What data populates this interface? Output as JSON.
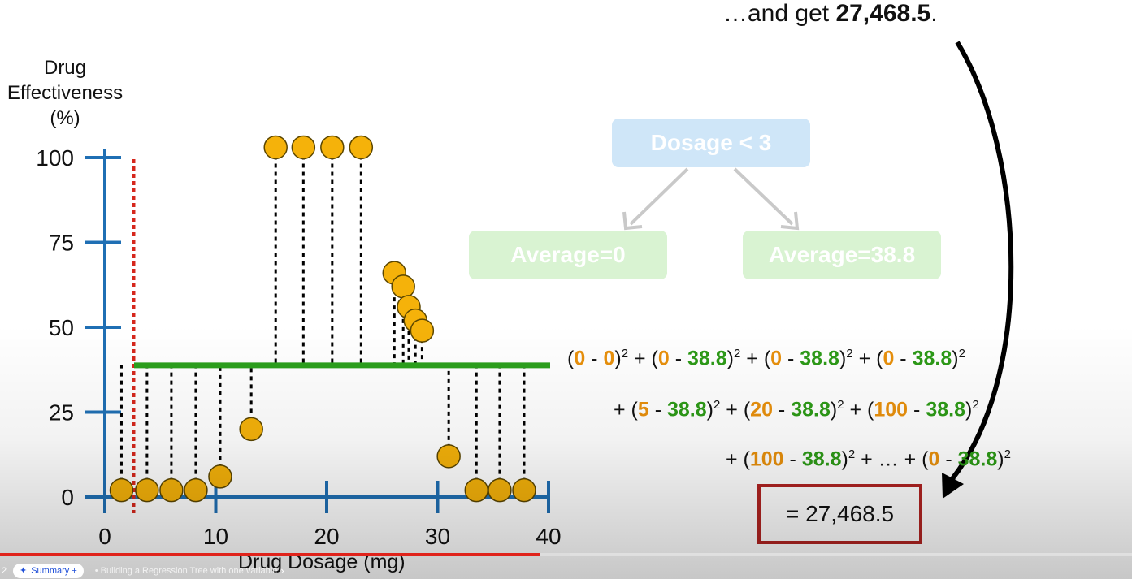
{
  "caption": {
    "prefix": "…and get ",
    "value": "27,468.5",
    "suffix": "."
  },
  "y_axis_title": [
    "Drug",
    "Effectiveness",
    "(%)"
  ],
  "x_axis_title": "Drug Dosage (mg)",
  "tree": {
    "root": "Dosage < 3",
    "left": "Average=0",
    "right": "Average=38.8"
  },
  "result": "= 27,468.5",
  "colors": {
    "axis": "#1f6fb4",
    "point_fill": "#f5b20a",
    "point_stroke": "#5b4600",
    "threshold": "#d6271c",
    "average_line": "#2ca01c",
    "orange_text": "#e8900c",
    "green_text": "#2d9a17",
    "result_border": "#b02321",
    "progress_played": "#e0231b"
  },
  "chart_data": {
    "type": "scatter",
    "xlabel": "Drug Dosage (mg)",
    "ylabel": "Drug Effectiveness (%)",
    "xlim": [
      0,
      40
    ],
    "ylim": [
      0,
      100
    ],
    "x_ticks": [
      "0",
      "10",
      "20",
      "30",
      "40"
    ],
    "y_ticks": [
      "0",
      "25",
      "50",
      "75",
      "100"
    ],
    "threshold_x": 2.6,
    "average_y": 38.8,
    "points": [
      {
        "x": 1.5,
        "y": 2
      },
      {
        "x": 3.8,
        "y": 2
      },
      {
        "x": 6.0,
        "y": 2
      },
      {
        "x": 8.2,
        "y": 2
      },
      {
        "x": 10.4,
        "y": 6
      },
      {
        "x": 13.2,
        "y": 20
      },
      {
        "x": 15.4,
        "y": 103
      },
      {
        "x": 17.9,
        "y": 103
      },
      {
        "x": 20.5,
        "y": 103
      },
      {
        "x": 23.1,
        "y": 103
      },
      {
        "x": 26.1,
        "y": 66
      },
      {
        "x": 26.9,
        "y": 62
      },
      {
        "x": 27.4,
        "y": 56
      },
      {
        "x": 28.0,
        "y": 52
      },
      {
        "x": 28.6,
        "y": 49
      },
      {
        "x": 31.0,
        "y": 12
      },
      {
        "x": 33.5,
        "y": 2
      },
      {
        "x": 35.6,
        "y": 2
      },
      {
        "x": 37.8,
        "y": 2
      }
    ]
  },
  "equation": {
    "line1": [
      {
        "t": "(",
        "c": ""
      },
      {
        "t": "0",
        "c": "o"
      },
      {
        "t": " - ",
        "c": ""
      },
      {
        "t": "0",
        "c": "o"
      },
      {
        "t": ")",
        "c": ""
      },
      {
        "t": "2",
        "c": "sup"
      },
      {
        "t": " + (",
        "c": ""
      },
      {
        "t": "0",
        "c": "o"
      },
      {
        "t": " - ",
        "c": ""
      },
      {
        "t": "38.8",
        "c": "g"
      },
      {
        "t": ")",
        "c": ""
      },
      {
        "t": "2",
        "c": "sup"
      },
      {
        "t": " + (",
        "c": ""
      },
      {
        "t": "0",
        "c": "o"
      },
      {
        "t": " - ",
        "c": ""
      },
      {
        "t": "38.8",
        "c": "g"
      },
      {
        "t": ")",
        "c": ""
      },
      {
        "t": "2",
        "c": "sup"
      },
      {
        "t": " + (",
        "c": ""
      },
      {
        "t": "0",
        "c": "o"
      },
      {
        "t": " - ",
        "c": ""
      },
      {
        "t": "38.8",
        "c": "g"
      },
      {
        "t": ")",
        "c": ""
      },
      {
        "t": "2",
        "c": "sup"
      }
    ],
    "line2": [
      {
        "t": "+ (",
        "c": ""
      },
      {
        "t": "5",
        "c": "o"
      },
      {
        "t": " - ",
        "c": ""
      },
      {
        "t": "38.8",
        "c": "g"
      },
      {
        "t": ")",
        "c": ""
      },
      {
        "t": "2",
        "c": "sup"
      },
      {
        "t": " + (",
        "c": ""
      },
      {
        "t": "20",
        "c": "o"
      },
      {
        "t": " - ",
        "c": ""
      },
      {
        "t": "38.8",
        "c": "g"
      },
      {
        "t": ")",
        "c": ""
      },
      {
        "t": "2",
        "c": "sup"
      },
      {
        "t": " + (",
        "c": ""
      },
      {
        "t": "100",
        "c": "o"
      },
      {
        "t": " - ",
        "c": ""
      },
      {
        "t": "38.8",
        "c": "g"
      },
      {
        "t": ")",
        "c": ""
      },
      {
        "t": "2",
        "c": "sup"
      }
    ],
    "line3": [
      {
        "t": "+ (",
        "c": ""
      },
      {
        "t": "100",
        "c": "o"
      },
      {
        "t": " - ",
        "c": ""
      },
      {
        "t": "38.8",
        "c": "g"
      },
      {
        "t": ")",
        "c": ""
      },
      {
        "t": "2",
        "c": "sup"
      },
      {
        "t": " + … + (",
        "c": ""
      },
      {
        "t": "0",
        "c": "o"
      },
      {
        "t": " - ",
        "c": ""
      },
      {
        "t": "38.8",
        "c": "g"
      },
      {
        "t": ")",
        "c": ""
      },
      {
        "t": "2",
        "c": "sup"
      }
    ]
  },
  "player": {
    "chapter_number": "2",
    "summary_label": "Summary +",
    "chapter_title": "• Building a Regression Tree with one variable",
    "progress_played": 0.477,
    "progress_buffered": 0.503
  }
}
